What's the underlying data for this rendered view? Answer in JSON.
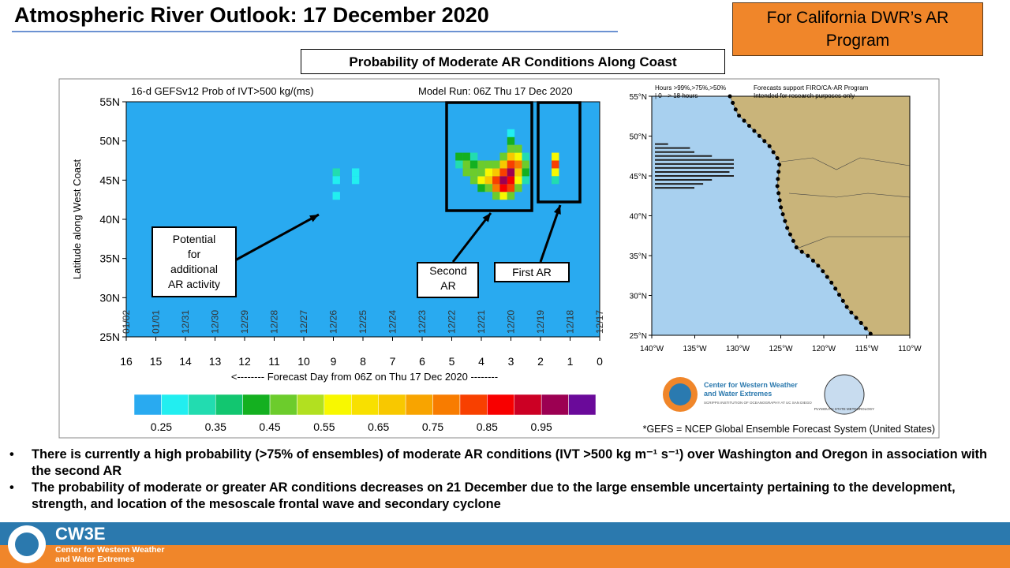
{
  "header": {
    "title": "Atmospheric River Outlook: 17 December 2020",
    "badge": "For California DWR’s AR Program"
  },
  "figure": {
    "caption": "Probability of Moderate AR Conditions Along Coast"
  },
  "heatmap": {
    "type": "heatmap",
    "title": "16-d GEFSv12 Prob of IVT>500 kg/(ms)",
    "model_run": "Model Run: 06Z Thu 17 Dec 2020",
    "ylabel": "Latitude along West Coast",
    "xlabel": "<-------- Forecast Day from 06Z on Thu 17 Dec 2020 --------",
    "xlim": [
      16,
      0
    ],
    "xticks": [
      16,
      15,
      14,
      13,
      12,
      11,
      10,
      9,
      8,
      7,
      6,
      5,
      4,
      3,
      2,
      1,
      0
    ],
    "dates": [
      "01/02",
      "01/01",
      "12/31",
      "12/30",
      "12/29",
      "12/28",
      "12/27",
      "12/26",
      "12/25",
      "12/24",
      "12/23",
      "12/22",
      "12/21",
      "12/20",
      "12/19",
      "12/18",
      "12/17"
    ],
    "ylim": [
      25,
      55
    ],
    "yticks": [
      {
        "value": 55,
        "label": "55N"
      },
      {
        "value": 50,
        "label": "50N"
      },
      {
        "value": 45,
        "label": "45N"
      },
      {
        "value": 40,
        "label": "40N"
      },
      {
        "value": 35,
        "label": "35N"
      },
      {
        "value": 30,
        "label": "30N"
      },
      {
        "value": 25,
        "label": "25N"
      }
    ],
    "clim": [
      0.2,
      1.05
    ],
    "colors": [
      "#29aaf0",
      "#22eef0",
      "#22dcb0",
      "#12c670",
      "#14b020",
      "#6ccc2c",
      "#b2e020",
      "#f8f800",
      "#f8e000",
      "#f8c800",
      "#f8a400",
      "#f87c00",
      "#f84000",
      "#f80000",
      "#cc0024",
      "#9c0052",
      "#6a0a9a"
    ],
    "cticks": [
      0.25,
      0.35,
      0.45,
      0.55,
      0.65,
      0.75,
      0.85,
      0.95
    ],
    "cells": [
      {
        "day": 8.9,
        "lat": 46,
        "p": 0.35
      },
      {
        "day": 8.9,
        "lat": 45,
        "p": 0.3
      },
      {
        "day": 8.9,
        "lat": 43,
        "p": 0.3
      },
      {
        "day": 8.25,
        "lat": 46,
        "p": 0.3
      },
      {
        "day": 8.25,
        "lat": 45,
        "p": 0.3
      },
      {
        "day": 1.5,
        "lat": 48,
        "p": 0.55
      },
      {
        "day": 1.5,
        "lat": 47,
        "p": 0.8
      },
      {
        "day": 1.5,
        "lat": 46,
        "p": 0.6
      },
      {
        "day": 1.5,
        "lat": 45,
        "p": 0.35
      },
      {
        "day": 4.75,
        "lat": 47,
        "p": 0.35
      },
      {
        "day": 4.75,
        "lat": 48,
        "p": 0.4
      },
      {
        "day": 4.5,
        "lat": 46,
        "p": 0.45
      },
      {
        "day": 4.5,
        "lat": 47,
        "p": 0.5
      },
      {
        "day": 4.5,
        "lat": 48,
        "p": 0.4
      },
      {
        "day": 4.25,
        "lat": 45,
        "p": 0.45
      },
      {
        "day": 4.25,
        "lat": 46,
        "p": 0.5
      },
      {
        "day": 4.25,
        "lat": 47,
        "p": 0.4
      },
      {
        "day": 4.25,
        "lat": 48,
        "p": 0.35
      },
      {
        "day": 4.0,
        "lat": 44,
        "p": 0.4
      },
      {
        "day": 4.0,
        "lat": 45,
        "p": 0.55
      },
      {
        "day": 4.0,
        "lat": 46,
        "p": 0.5
      },
      {
        "day": 4.0,
        "lat": 47,
        "p": 0.45
      },
      {
        "day": 3.75,
        "lat": 44,
        "p": 0.5
      },
      {
        "day": 3.75,
        "lat": 45,
        "p": 0.65
      },
      {
        "day": 3.75,
        "lat": 46,
        "p": 0.6
      },
      {
        "day": 3.75,
        "lat": 47,
        "p": 0.5
      },
      {
        "day": 3.5,
        "lat": 43,
        "p": 0.45
      },
      {
        "day": 3.5,
        "lat": 44,
        "p": 0.75
      },
      {
        "day": 3.5,
        "lat": 45,
        "p": 0.8
      },
      {
        "day": 3.5,
        "lat": 46,
        "p": 0.65
      },
      {
        "day": 3.5,
        "lat": 47,
        "p": 0.5
      },
      {
        "day": 3.25,
        "lat": 43,
        "p": 0.55
      },
      {
        "day": 3.25,
        "lat": 44,
        "p": 0.9
      },
      {
        "day": 3.25,
        "lat": 45,
        "p": 0.97
      },
      {
        "day": 3.25,
        "lat": 46,
        "p": 0.85
      },
      {
        "day": 3.25,
        "lat": 47,
        "p": 0.7
      },
      {
        "day": 3.25,
        "lat": 48,
        "p": 0.5
      },
      {
        "day": 3.0,
        "lat": 43,
        "p": 0.5
      },
      {
        "day": 3.0,
        "lat": 44,
        "p": 0.8
      },
      {
        "day": 3.0,
        "lat": 45,
        "p": 0.9
      },
      {
        "day": 3.0,
        "lat": 46,
        "p": 0.95
      },
      {
        "day": 3.0,
        "lat": 47,
        "p": 0.85
      },
      {
        "day": 3.0,
        "lat": 48,
        "p": 0.65
      },
      {
        "day": 3.0,
        "lat": 49,
        "p": 0.5
      },
      {
        "day": 3.0,
        "lat": 50,
        "p": 0.4
      },
      {
        "day": 3.0,
        "lat": 51,
        "p": 0.3
      },
      {
        "day": 2.75,
        "lat": 44,
        "p": 0.5
      },
      {
        "day": 2.75,
        "lat": 45,
        "p": 0.6
      },
      {
        "day": 2.75,
        "lat": 46,
        "p": 0.7
      },
      {
        "day": 2.75,
        "lat": 47,
        "p": 0.75
      },
      {
        "day": 2.75,
        "lat": 48,
        "p": 0.6
      },
      {
        "day": 2.75,
        "lat": 49,
        "p": 0.45
      },
      {
        "day": 2.5,
        "lat": 45,
        "p": 0.35
      },
      {
        "day": 2.5,
        "lat": 46,
        "p": 0.4
      },
      {
        "day": 2.5,
        "lat": 47,
        "p": 0.45
      },
      {
        "day": 2.5,
        "lat": 48,
        "p": 0.35
      }
    ],
    "annotations": [
      "Potential for additional AR activity",
      "Second AR",
      "First AR"
    ]
  },
  "map": {
    "legend": [
      "Hours >99%,>75%,>50%",
      "| 0 --> 18 hours"
    ],
    "note": [
      "Forecasts support FIRO/CA-AR Program",
      "Intended for research purposes only"
    ],
    "xlim": [
      -140,
      -110
    ],
    "xticks": [
      {
        "value": -140,
        "label": "140°W"
      },
      {
        "value": -135,
        "label": "135°W"
      },
      {
        "value": -130,
        "label": "130°W"
      },
      {
        "value": -125,
        "label": "125°W"
      },
      {
        "value": -120,
        "label": "120°W"
      },
      {
        "value": -115,
        "label": "115°W"
      },
      {
        "value": -110,
        "label": "110°W"
      }
    ],
    "ylim": [
      25,
      55
    ],
    "yticks": [
      {
        "value": 55,
        "label": "55°N"
      },
      {
        "value": 50,
        "label": "50°N"
      },
      {
        "value": 45,
        "label": "45°N"
      },
      {
        "value": 40,
        "label": "40°N"
      },
      {
        "value": 35,
        "label": "35°N"
      },
      {
        "value": 30,
        "label": "30°N"
      },
      {
        "value": 25,
        "label": "25°N"
      }
    ],
    "hours_max": 18,
    "bar_lats": [
      49,
      48.5,
      48,
      47.5,
      47,
      46.5,
      46,
      45.5,
      45,
      44.5,
      44,
      43.5
    ],
    "bar_hours": [
      3,
      8,
      9,
      13,
      18,
      18,
      18,
      17,
      18,
      13,
      11,
      9
    ]
  },
  "logos": {
    "cw3e": [
      "Center for Western Weather",
      "and Water Extremes"
    ],
    "scripps": "SCRIPPS INSTITUTION OF OCEANOGRAPHY AT UC SAN DIEGO",
    "plymouth": "PLYMOUTH STATE METEOROLOGY"
  },
  "footnote": "*GEFS = NCEP Global Ensemble Forecast System (United States)",
  "bullets": [
    "There is currently a high probability (>75% of ensembles) of moderate AR conditions (IVT >500 kg m⁻¹ s⁻¹) over Washington and Oregon in association with the second AR",
    "The probability of moderate or greater AR conditions decreases on 21 December due to the large ensemble uncertainty pertaining to the development, strength, and location of the mesoscale frontal wave and secondary cyclone"
  ],
  "footer": {
    "brand": "CW3E",
    "lines": [
      "Center for Western Weather",
      "and Water Extremes"
    ]
  }
}
